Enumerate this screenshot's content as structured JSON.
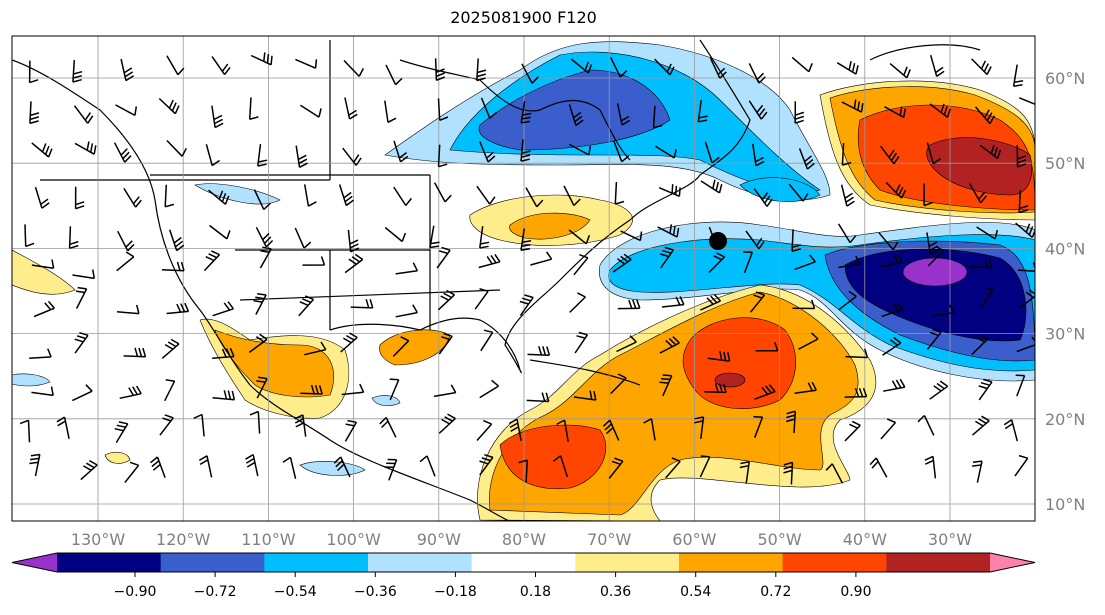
{
  "title": "2025081900 F120",
  "lon_labels": [
    "130°W",
    "120°W",
    "110°W",
    "100°W",
    "90°W",
    "80°W",
    "70°W",
    "60°W",
    "50°W",
    "40°W",
    "30°W"
  ],
  "lat_labels": [
    "60°N",
    "50°N",
    "40°N",
    "30°N",
    "20°N",
    "10°N"
  ],
  "colorbar": {
    "ticks": [
      "−0.90",
      "−0.72",
      "−0.54",
      "−0.36",
      "−0.18",
      "0.18",
      "0.36",
      "0.54",
      "0.72",
      "0.90"
    ],
    "colors": [
      "#9932cc",
      "#000080",
      "#3a5fcd",
      "#00bfff",
      "#b0e2ff",
      "#ffffff",
      "#ffec8b",
      "#ffa500",
      "#ff4500",
      "#b22222",
      "#ff82ab"
    ]
  }
}
